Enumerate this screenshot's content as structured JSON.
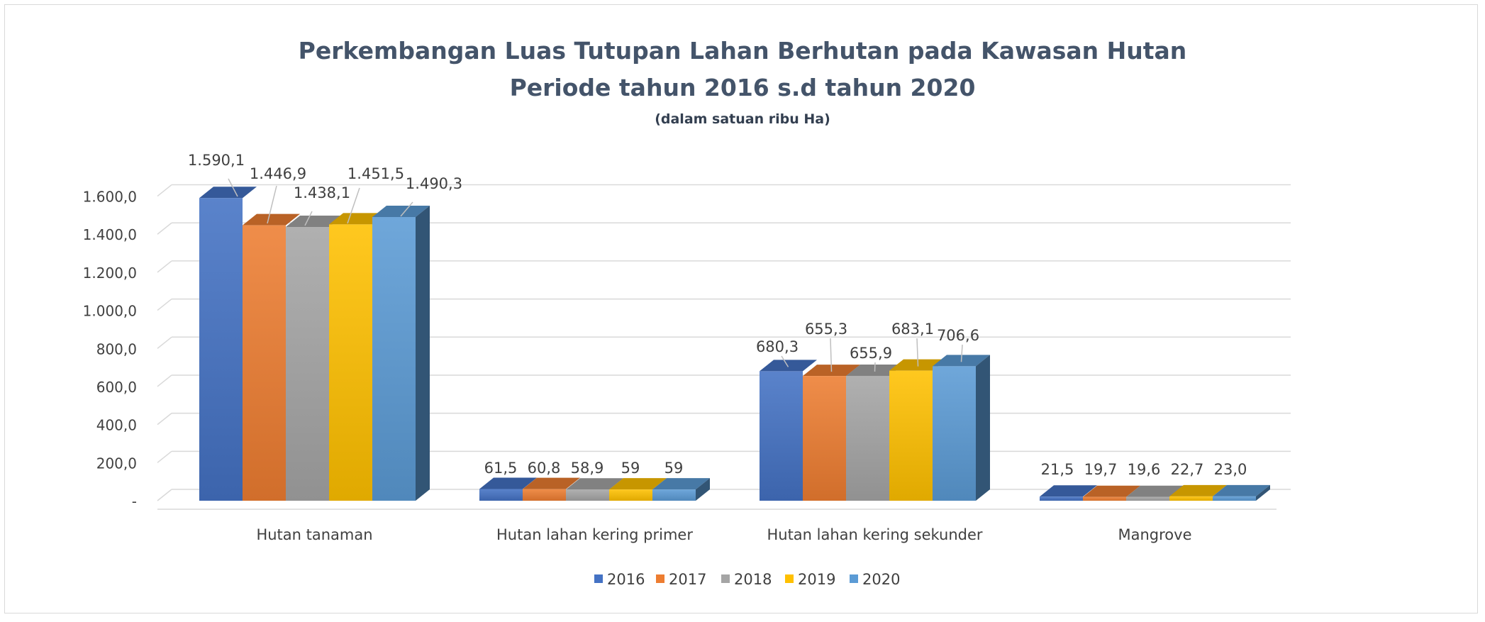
{
  "chart_data": {
    "type": "bar",
    "title": "Perkembangan Luas Tutupan Lahan Berhutan pada Kawasan Hutan",
    "subtitle": "Periode tahun 2016 s.d tahun 2020",
    "unit_note": "(dalam satuan ribu Ha)",
    "categories": [
      "Hutan tanaman",
      "Hutan lahan kering primer",
      "Hutan lahan kering sekunder",
      "Mangrove"
    ],
    "series": [
      {
        "name": "2016",
        "color": "#4472c4",
        "values": [
          1590.1,
          61.5,
          680.3,
          21.5
        ],
        "labels": [
          "1.590,1",
          "61,5",
          "680,3",
          "21,5"
        ]
      },
      {
        "name": "2017",
        "color": "#ed7d31",
        "values": [
          1446.9,
          60.8,
          655.3,
          19.7
        ],
        "labels": [
          "1.446,9",
          "60,8",
          "655,3",
          "19,7"
        ]
      },
      {
        "name": "2018",
        "color": "#a5a5a5",
        "values": [
          1438.1,
          58.9,
          655.9,
          19.6
        ],
        "labels": [
          "1.438,1",
          "58,9",
          "655,9",
          "19,6"
        ]
      },
      {
        "name": "2019",
        "color": "#ffc000",
        "values": [
          1451.5,
          59,
          683.1,
          22.7
        ],
        "labels": [
          "1.451,5",
          "59",
          "683,1",
          "22,7"
        ]
      },
      {
        "name": "2020",
        "color": "#5b9bd5",
        "values": [
          1490.3,
          59,
          706.6,
          23.0
        ],
        "labels": [
          "1.490,3",
          "59",
          "706,6",
          "23,0"
        ]
      }
    ],
    "yticks": [
      0,
      200,
      400,
      600,
      800,
      1000,
      1200,
      1400,
      1600
    ],
    "ytick_labels": [
      "-",
      "200,0",
      "400,0",
      "600,0",
      "800,0",
      "1.000,0",
      "1.200,0",
      "1.400,0",
      "1.600,0"
    ],
    "ylim": [
      0,
      1600
    ],
    "grid": true,
    "legend_position": "bottom-center"
  }
}
